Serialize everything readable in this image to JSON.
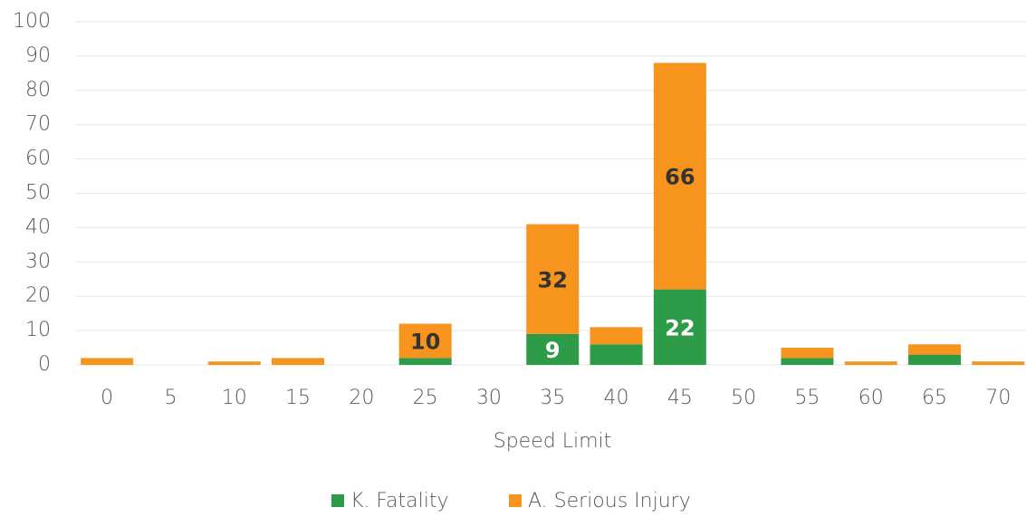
{
  "chart_data": {
    "type": "stacked_bar",
    "x_label": "Speed Limit",
    "categories": [
      "0",
      "5",
      "10",
      "15",
      "20",
      "25",
      "30",
      "35",
      "40",
      "45",
      "50",
      "55",
      "60",
      "65",
      "70"
    ],
    "series": [
      {
        "name": "K. Fatality",
        "color": "#2e9b48",
        "label_color": "#ffffff",
        "values": [
          0,
          0,
          0,
          0,
          0,
          2,
          0,
          9,
          6,
          22,
          0,
          2,
          0,
          3,
          0
        ]
      },
      {
        "name": "A. Serious Injury",
        "color": "#f7941d",
        "label_color": "#333333",
        "values": [
          2,
          0,
          1,
          2,
          0,
          10,
          0,
          32,
          5,
          66,
          0,
          3,
          1,
          3,
          1
        ]
      }
    ],
    "ylim": [
      0,
      100
    ],
    "yticks": [
      0,
      10,
      20,
      30,
      40,
      50,
      60,
      70,
      80,
      90,
      100
    ],
    "grid": true,
    "legend": "bottom"
  }
}
